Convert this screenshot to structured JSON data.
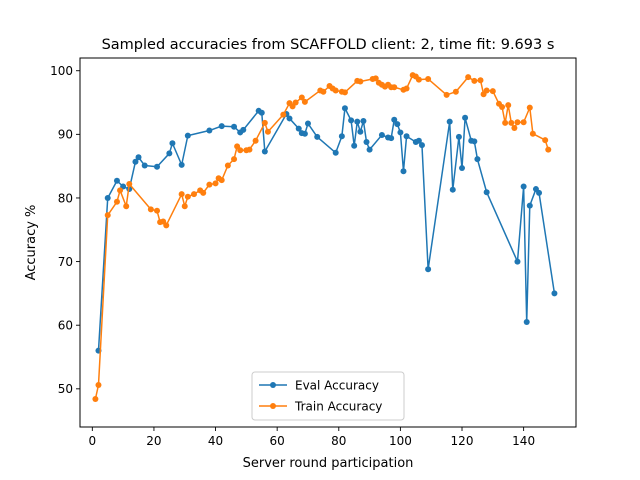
{
  "chart_data": {
    "type": "line",
    "title": "Sampled accuracies from SCAFFOLD client: 2, time fit: 9.693 s",
    "xlabel": "Server round participation",
    "ylabel": "Accuracy %",
    "xlim": [
      -4,
      157
    ],
    "ylim": [
      44,
      102
    ],
    "xticks": [
      0,
      20,
      40,
      60,
      80,
      100,
      120,
      140
    ],
    "yticks": [
      50,
      60,
      70,
      80,
      90,
      100
    ],
    "legend_position": "lower center",
    "grid": false,
    "series": [
      {
        "name": "Eval Accuracy",
        "color": "#1f77b4",
        "x": [
          2,
          5,
          8,
          10,
          12,
          14,
          15,
          17,
          21,
          25,
          26,
          29,
          31,
          38,
          42,
          46,
          48,
          49,
          54,
          55,
          56,
          63,
          64,
          67,
          68,
          69,
          70,
          73,
          79,
          81,
          82,
          84,
          85,
          86,
          87,
          88,
          89,
          90,
          94,
          96,
          97,
          98,
          99,
          100,
          101,
          102,
          105,
          106,
          107,
          109,
          116,
          117,
          119,
          120,
          121,
          123,
          124,
          125,
          128,
          138,
          140,
          141,
          142,
          144,
          145,
          150
        ],
        "y": [
          56.0,
          80.0,
          82.7,
          81.8,
          81.4,
          85.7,
          86.4,
          85.1,
          84.9,
          87.0,
          88.6,
          85.2,
          89.8,
          90.6,
          91.3,
          91.2,
          90.3,
          90.7,
          93.7,
          93.4,
          87.3,
          93.2,
          92.5,
          90.9,
          90.2,
          90.1,
          91.7,
          89.6,
          87.1,
          89.7,
          94.1,
          92.2,
          88.2,
          92.0,
          90.4,
          92.1,
          88.8,
          87.6,
          89.9,
          89.5,
          89.4,
          92.3,
          91.6,
          90.3,
          84.2,
          89.7,
          88.8,
          89.0,
          88.3,
          68.8,
          92.0,
          81.3,
          89.6,
          84.7,
          92.6,
          89.0,
          88.9,
          86.1,
          80.9,
          70.0,
          81.8,
          60.5,
          78.8,
          81.4,
          80.8,
          65.0
        ]
      },
      {
        "name": "Train Accuracy",
        "color": "#ff7f0e",
        "x": [
          1,
          2,
          5,
          8,
          9,
          11,
          12,
          19,
          21,
          22,
          23,
          24,
          29,
          30,
          31,
          33,
          35,
          36,
          38,
          40,
          41,
          42,
          44,
          46,
          47,
          48,
          50,
          51,
          53,
          56,
          57,
          62,
          64,
          65,
          66,
          68,
          69,
          74,
          75,
          77,
          78,
          79,
          81,
          82,
          86,
          87,
          91,
          92,
          93,
          94,
          95,
          96,
          97,
          98,
          101,
          102,
          104,
          105,
          106,
          109,
          115,
          118,
          122,
          124,
          126,
          127,
          128,
          130,
          132,
          133,
          134,
          135,
          136,
          137,
          138,
          140,
          142,
          143,
          147,
          148
        ],
        "y": [
          48.4,
          50.6,
          77.3,
          79.4,
          81.2,
          78.7,
          82.2,
          78.2,
          78.0,
          76.2,
          76.3,
          75.7,
          80.6,
          78.7,
          80.2,
          80.6,
          81.2,
          80.8,
          82.1,
          82.3,
          83.1,
          82.8,
          85.1,
          86.1,
          88.1,
          87.5,
          87.5,
          87.6,
          89.0,
          91.8,
          90.4,
          93.1,
          94.9,
          94.4,
          95.0,
          95.8,
          95.1,
          96.9,
          96.7,
          97.6,
          97.2,
          96.9,
          96.7,
          96.6,
          98.4,
          98.3,
          98.7,
          98.8,
          98.1,
          97.8,
          97.5,
          97.8,
          97.4,
          97.4,
          97.0,
          97.2,
          99.3,
          99.1,
          98.6,
          98.7,
          96.2,
          96.7,
          99.0,
          98.4,
          98.5,
          96.3,
          96.9,
          96.8,
          94.8,
          94.3,
          91.8,
          94.6,
          91.8,
          91.0,
          91.9,
          91.9,
          94.2,
          90.1,
          89.1,
          87.6
        ]
      }
    ]
  }
}
